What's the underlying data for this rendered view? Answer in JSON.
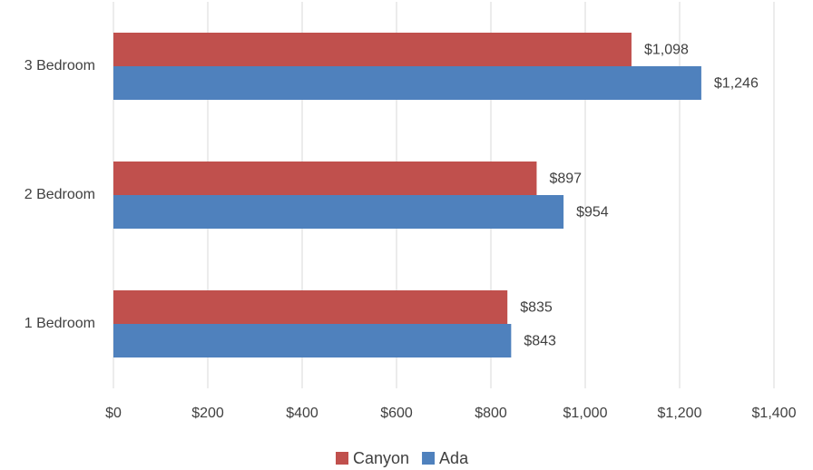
{
  "chart_data": {
    "type": "hbar",
    "categories": [
      "1 Bedroom",
      "2 Bedroom",
      "3 Bedroom"
    ],
    "series": [
      {
        "name": "Canyon",
        "color": "#c0504d",
        "values": [
          835,
          897,
          1098
        ],
        "value_labels": [
          "$835",
          "$897",
          "$1,098"
        ]
      },
      {
        "name": "Ada",
        "color": "#4f81bd",
        "values": [
          843,
          954,
          1246
        ],
        "value_labels": [
          "$843",
          "$954",
          "$1,246"
        ]
      }
    ],
    "xlim": [
      0,
      1400
    ],
    "xticks": [
      {
        "value": 0,
        "label": "$0"
      },
      {
        "value": 200,
        "label": "$200"
      },
      {
        "value": 400,
        "label": "$400"
      },
      {
        "value": 600,
        "label": "$600"
      },
      {
        "value": 800,
        "label": "$800"
      },
      {
        "value": 1000,
        "label": "$1,000"
      },
      {
        "value": 1200,
        "label": "$1,200"
      },
      {
        "value": 1400,
        "label": "$1,400"
      }
    ],
    "grid": true,
    "legend": "bottom"
  }
}
